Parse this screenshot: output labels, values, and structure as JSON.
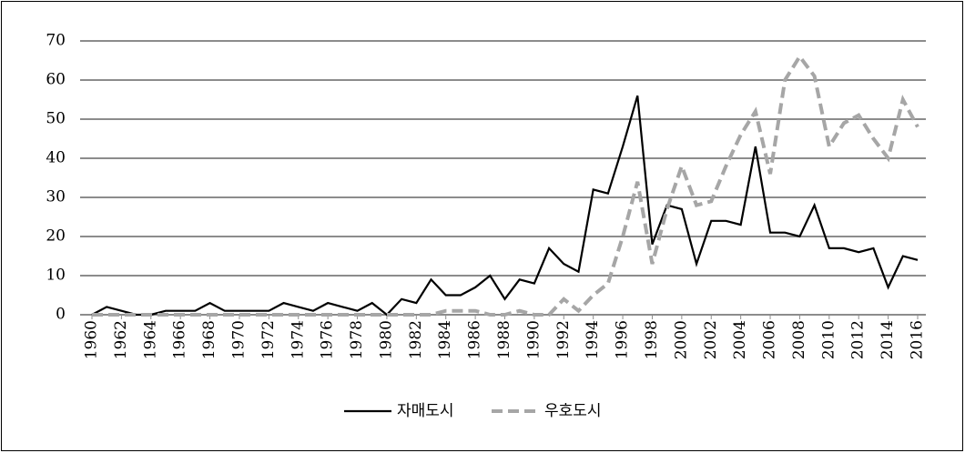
{
  "chart_data": {
    "type": "line",
    "x": [
      1960,
      1961,
      1962,
      1963,
      1964,
      1965,
      1966,
      1967,
      1968,
      1969,
      1970,
      1971,
      1972,
      1973,
      1974,
      1975,
      1976,
      1977,
      1978,
      1979,
      1980,
      1981,
      1982,
      1983,
      1984,
      1985,
      1986,
      1987,
      1988,
      1989,
      1990,
      1991,
      1992,
      1993,
      1994,
      1995,
      1996,
      1997,
      1998,
      1999,
      2000,
      2001,
      2002,
      2003,
      2004,
      2005,
      2006,
      2007,
      2008,
      2009,
      2010,
      2011,
      2012,
      2013,
      2014,
      2015,
      2016
    ],
    "series": [
      {
        "name": "자매도시",
        "color": "#000000",
        "dashed": false,
        "values": [
          0,
          2,
          1,
          0,
          0,
          1,
          1,
          1,
          3,
          1,
          1,
          1,
          1,
          3,
          2,
          1,
          3,
          2,
          1,
          3,
          0,
          4,
          3,
          9,
          5,
          5,
          7,
          10,
          4,
          9,
          8,
          17,
          13,
          11,
          32,
          31,
          43,
          56,
          18,
          28,
          27,
          13,
          24,
          24,
          23,
          43,
          21,
          21,
          20,
          28,
          17,
          17,
          16,
          17,
          7,
          15,
          14
        ]
      },
      {
        "name": "우호도시",
        "color": "#a6a6a6",
        "dashed": true,
        "values": [
          0,
          0,
          0,
          0,
          0,
          0,
          0,
          0,
          0,
          0,
          0,
          0,
          0,
          0,
          0,
          0,
          0,
          0,
          0,
          0,
          0,
          0,
          0,
          0,
          1,
          1,
          1,
          0,
          0,
          1,
          0,
          0,
          4,
          1,
          5,
          8,
          20,
          34,
          13,
          27,
          38,
          28,
          29,
          38,
          46,
          52,
          36,
          60,
          66,
          61,
          43,
          49,
          51,
          45,
          40,
          55,
          48
        ]
      }
    ],
    "xlim": [
      1960,
      2016
    ],
    "xticks": [
      1960,
      1962,
      1964,
      1966,
      1968,
      1970,
      1972,
      1974,
      1976,
      1978,
      1980,
      1982,
      1984,
      1986,
      1988,
      1990,
      1992,
      1994,
      1996,
      1998,
      2000,
      2002,
      2004,
      2006,
      2008,
      2010,
      2012,
      2014,
      2016
    ],
    "ylim": [
      0,
      70
    ],
    "yticks": [
      0,
      10,
      20,
      30,
      40,
      50,
      60,
      70
    ],
    "grid": true
  }
}
